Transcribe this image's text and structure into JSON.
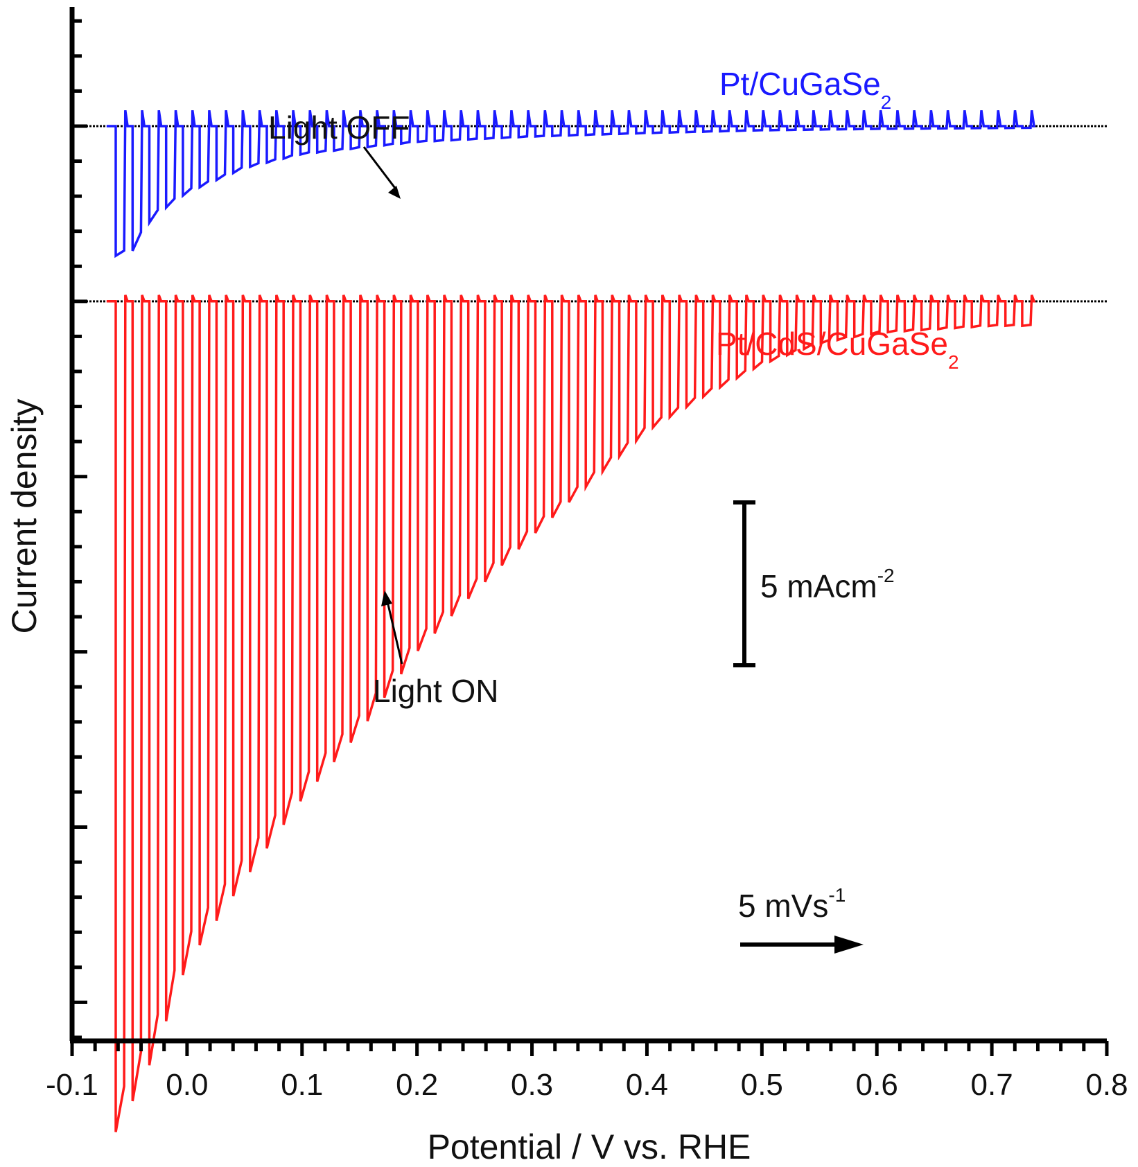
{
  "chart_data": {
    "type": "line",
    "xlabel": "Potential / V vs. RHE",
    "ylabel": "Current density",
    "xlim": [
      -0.1,
      0.8
    ],
    "ylim": [
      -26.1,
      3.4
    ],
    "x_ticks": [
      "-0.1",
      "0.0",
      "0.1",
      "0.2",
      "0.3",
      "0.4",
      "0.5",
      "0.6",
      "0.7",
      "0.8"
    ],
    "x_tick_values": [
      -0.1,
      0.0,
      0.1,
      0.2,
      0.3,
      0.4,
      0.5,
      0.6,
      0.7,
      0.8
    ],
    "y_minor_step": 1,
    "y_major_step": 5,
    "y_tick_labels_shown": false,
    "chopped_light": true,
    "chop_period_V": 0.0146,
    "scan_start_V": -0.062,
    "scan_end_V": 0.735,
    "series": [
      {
        "name": "Pt/CuGaSe2",
        "label_main": "Pt/CuGaSe",
        "label_sub": "2",
        "color": "#1a1aff",
        "baseline_mA": 0,
        "envelope": {
          "x": [
            -0.05,
            -0.03,
            0.0,
            0.05,
            0.1,
            0.2,
            0.3,
            0.4,
            0.5,
            0.6,
            0.73
          ],
          "y": [
            -3.7,
            -2.6,
            -1.9,
            -1.2,
            -0.8,
            -0.45,
            -0.3,
            -0.2,
            -0.12,
            -0.08,
            -0.05
          ]
        }
      },
      {
        "name": "Pt/CdS/CuGaSe2",
        "label_main": "Pt/CdS/CuGaSe",
        "label_sub": "2",
        "color": "#ff1a1a",
        "baseline_mA": -5,
        "envelope": {
          "x": [
            -0.06,
            -0.03,
            0.0,
            0.05,
            0.1,
            0.15,
            0.2,
            0.25,
            0.3,
            0.35,
            0.4,
            0.45,
            0.5,
            0.55,
            0.6,
            0.65,
            0.7,
            0.73
          ],
          "y": [
            -23.7,
            -21.6,
            -18.9,
            -16.5,
            -14.2,
            -12.3,
            -10.0,
            -8.3,
            -6.7,
            -5.2,
            -3.7,
            -2.7,
            -1.8,
            -1.2,
            -0.9,
            -0.8,
            -0.7,
            -0.7
          ]
        }
      }
    ],
    "annotations": {
      "light_off": "Light OFF",
      "light_on": "Light ON",
      "scale_bar_main": "5 mAcm",
      "scale_bar_sup": "-2",
      "scale_bar_mA": 5,
      "scan_rate_main": "5 mVs",
      "scan_rate_sup": "-1"
    },
    "grid": false,
    "legend": "none"
  }
}
